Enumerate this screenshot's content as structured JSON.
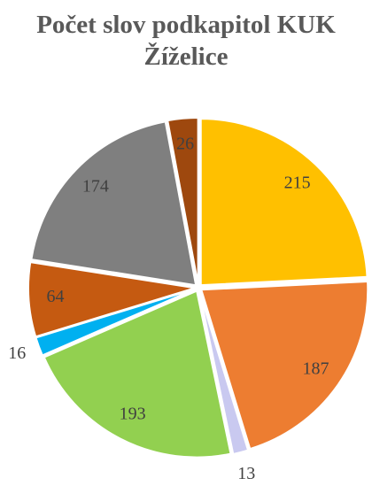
{
  "chart_data": {
    "type": "pie",
    "title": "Počet slov podkapitol KUK Žíželice",
    "values": [
      215,
      187,
      13,
      193,
      16,
      64,
      174,
      26
    ],
    "colors": [
      "#FFC000",
      "#ED7D31",
      "#C9C9F0",
      "#92D050",
      "#00B0F0",
      "#C55A11",
      "#7F7F7F",
      "#9E480E"
    ]
  }
}
